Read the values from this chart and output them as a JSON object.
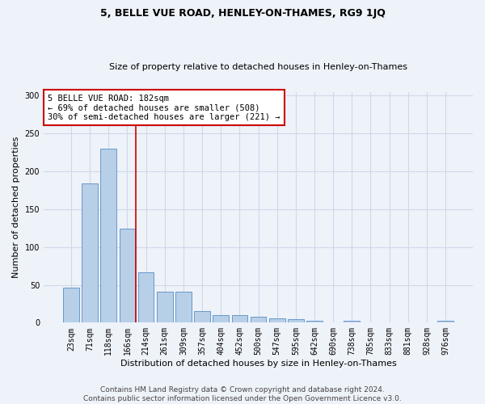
{
  "title": "5, BELLE VUE ROAD, HENLEY-ON-THAMES, RG9 1JQ",
  "subtitle": "Size of property relative to detached houses in Henley-on-Thames",
  "xlabel": "Distribution of detached houses by size in Henley-on-Thames",
  "ylabel": "Number of detached properties",
  "categories": [
    "23sqm",
    "71sqm",
    "118sqm",
    "166sqm",
    "214sqm",
    "261sqm",
    "309sqm",
    "357sqm",
    "404sqm",
    "452sqm",
    "500sqm",
    "547sqm",
    "595sqm",
    "642sqm",
    "690sqm",
    "738sqm",
    "785sqm",
    "833sqm",
    "881sqm",
    "928sqm",
    "976sqm"
  ],
  "values": [
    46,
    184,
    230,
    124,
    67,
    41,
    41,
    15,
    10,
    10,
    8,
    6,
    5,
    3,
    0,
    3,
    0,
    0,
    0,
    0,
    3
  ],
  "bar_color": "#b8cfe8",
  "bar_edge_color": "#6699cc",
  "grid_color": "#d0d8e8",
  "background_color": "#eef2f9",
  "vline_x": 3.45,
  "vline_color": "#cc0000",
  "annotation_text": "5 BELLE VUE ROAD: 182sqm\n← 69% of detached houses are smaller (508)\n30% of semi-detached houses are larger (221) →",
  "annotation_box_color": "#ffffff",
  "annotation_box_edge": "#cc0000",
  "ylim": [
    0,
    305
  ],
  "yticks": [
    0,
    50,
    100,
    150,
    200,
    250,
    300
  ],
  "footer_line1": "Contains HM Land Registry data © Crown copyright and database right 2024.",
  "footer_line2": "Contains public sector information licensed under the Open Government Licence v3.0.",
  "title_fontsize": 9,
  "subtitle_fontsize": 8,
  "xlabel_fontsize": 8,
  "ylabel_fontsize": 8,
  "tick_fontsize": 7,
  "annotation_fontsize": 7.5,
  "footer_fontsize": 6.5
}
